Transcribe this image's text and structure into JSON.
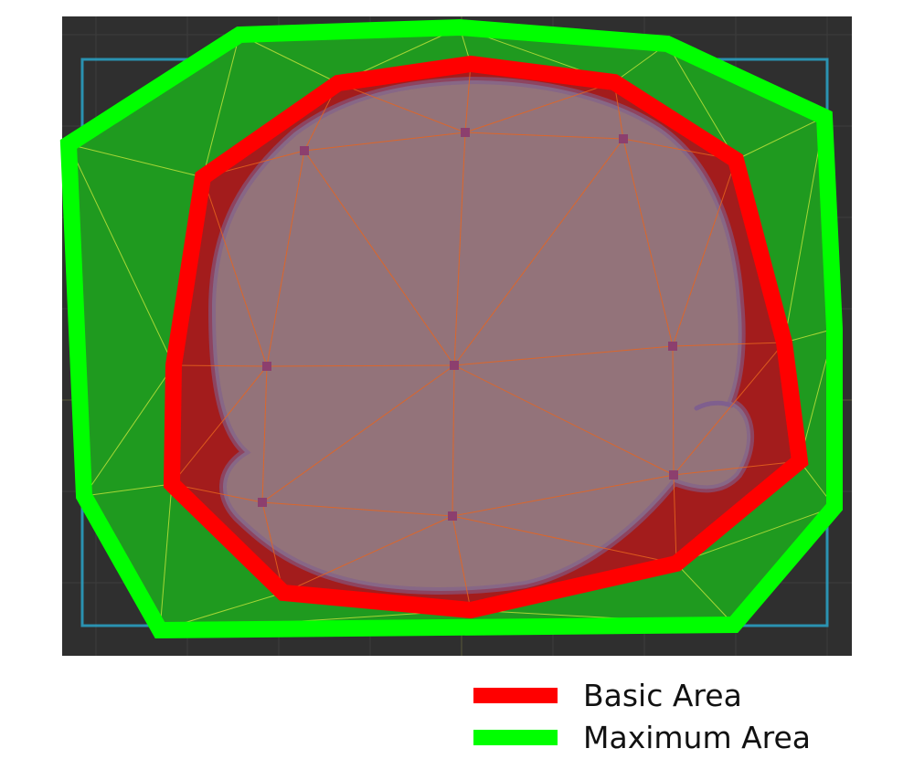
{
  "colors": {
    "canvas_bg": "#2f2f2f",
    "grid": "#3c3c3c",
    "axis": "#5a5a3a",
    "frame": "#29a3c8",
    "max_fill": "#1f9a1f",
    "basic_fill": "#a31c1c",
    "shape_fill": "#93737a",
    "shape_stroke": "#7f5f8e",
    "vertex": "#8c3f6e",
    "mesh_edge": "#e8641e",
    "outer_edge": "#c8e63c",
    "basic_area": "#ff0000",
    "maximum_area": "#00ff00"
  },
  "legend": [
    {
      "key": "basic",
      "label": "Basic Area",
      "color": "#ff0000"
    },
    {
      "key": "maximum",
      "label": "Maximum Area",
      "color": "#00ff00"
    }
  ]
}
